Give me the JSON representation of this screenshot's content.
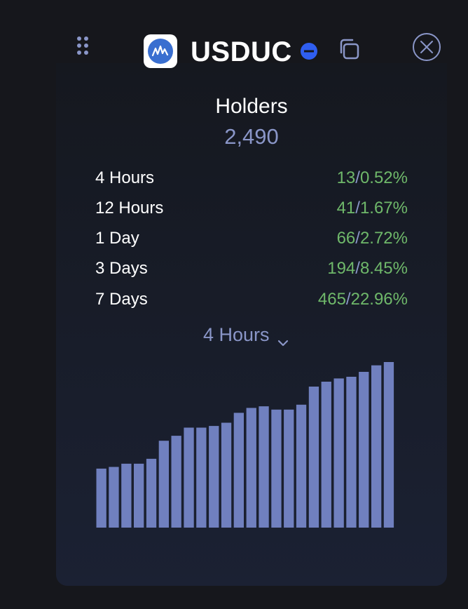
{
  "header": {
    "token_symbol": "USDUC",
    "drag_icon": "drag-handle-icon",
    "logo_icon": "token-logo",
    "status_icon": "status-minus-icon",
    "copy_icon": "copy-icon",
    "close_icon": "close-icon"
  },
  "holders": {
    "heading": "Holders",
    "count": "2,490",
    "rows": [
      {
        "label": "4 Hours",
        "count": "13",
        "percent": "0.52%"
      },
      {
        "label": "12 Hours",
        "count": "41",
        "percent": "1.67%"
      },
      {
        "label": "1 Day",
        "count": "66",
        "percent": "2.72%"
      },
      {
        "label": "3 Days",
        "count": "194",
        "percent": "8.45%"
      },
      {
        "label": "7 Days",
        "count": "465",
        "percent": "22.96%"
      }
    ]
  },
  "period_select": {
    "value": "4 Hours",
    "icon": "chevron-down-icon"
  },
  "colors": {
    "background": "#16171c",
    "accent": "#8a96c8",
    "positive": "#6fb86a",
    "bar": "#7080bf",
    "status_blue": "#2f5ef0"
  },
  "chart_data": {
    "type": "bar",
    "categories": [
      "1",
      "2",
      "3",
      "4",
      "5",
      "6",
      "7",
      "8",
      "9",
      "10",
      "11",
      "12",
      "13",
      "14",
      "15",
      "16",
      "17",
      "18",
      "19",
      "20",
      "21",
      "22",
      "23",
      "24",
      "25"
    ],
    "values": [
      36,
      37,
      39,
      39,
      42,
      53,
      56,
      61,
      61,
      62,
      64,
      70,
      73,
      74,
      72,
      72,
      75,
      86,
      89,
      91,
      92,
      95,
      99,
      101,
      0
    ],
    "ylim": [
      0,
      101
    ],
    "grid": false,
    "xlabel": "",
    "ylabel": ""
  }
}
